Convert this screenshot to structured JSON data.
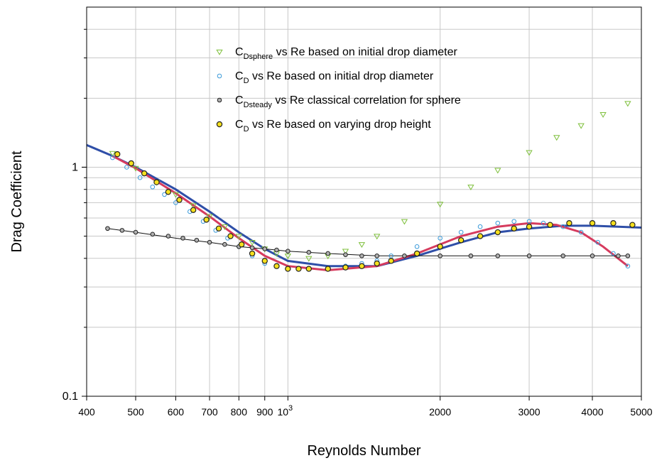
{
  "chart_data": {
    "type": "scatter",
    "title": "",
    "xlabel": "Reynolds Number",
    "ylabel": "Drag Coefficient",
    "xscale": "log",
    "yscale": "log",
    "xlim": [
      400,
      5000
    ],
    "ylim": [
      0.1,
      5
    ],
    "grid": true,
    "legend_position": "top-center",
    "x_ticks": [
      {
        "value": 400,
        "label": "400"
      },
      {
        "value": 500,
        "label": "500"
      },
      {
        "value": 600,
        "label": "600"
      },
      {
        "value": 700,
        "label": "700"
      },
      {
        "value": 800,
        "label": "800"
      },
      {
        "value": 900,
        "label": "900"
      },
      {
        "value": 1000,
        "label": "10",
        "sup": "3"
      },
      {
        "value": 2000,
        "label": "2000"
      },
      {
        "value": 3000,
        "label": "3000"
      },
      {
        "value": 4000,
        "label": "4000"
      },
      {
        "value": 5000,
        "label": "5000"
      }
    ],
    "y_ticks": [
      {
        "value": 0.1,
        "label": "0.1"
      },
      {
        "value": 1,
        "label": "1"
      }
    ],
    "series": [
      {
        "name": "C_Dsphere vs Re based on initial drop diameter",
        "label_main": "C",
        "label_sub": "Dsphere",
        "label_rest": " vs Re based on initial drop diameter",
        "marker": "triangle-down",
        "color": "#7dbf3a",
        "fill": "none",
        "x": [
          450,
          500,
          550,
          600,
          650,
          700,
          750,
          800,
          850,
          900,
          950,
          1000,
          1100,
          1200,
          1300,
          1400,
          1500,
          1700,
          2000,
          2300,
          2600,
          3000,
          3400,
          3800,
          4200,
          4700
        ],
        "y": [
          1.15,
          0.99,
          0.86,
          0.76,
          0.68,
          0.61,
          0.55,
          0.5,
          0.47,
          0.44,
          0.42,
          0.41,
          0.4,
          0.41,
          0.43,
          0.46,
          0.5,
          0.58,
          0.69,
          0.82,
          0.97,
          1.16,
          1.35,
          1.52,
          1.7,
          1.9
        ]
      },
      {
        "name": "C_D vs Re based on initial drop diameter",
        "label_main": "C",
        "label_sub": "D",
        "label_rest": "  vs Re based on initial drop diameter",
        "marker": "circle-open",
        "color": "#3a9ad9",
        "fill": "none",
        "x": [
          450,
          480,
          510,
          540,
          570,
          600,
          640,
          680,
          720,
          760,
          800,
          850,
          900,
          950,
          1000,
          1050,
          1100,
          1200,
          1300,
          1400,
          1500,
          1600,
          1800,
          2000,
          2200,
          2400,
          2600,
          2800,
          3000,
          3200,
          3500,
          3800,
          4100,
          4400,
          4700
        ],
        "y": [
          1.1,
          1.0,
          0.9,
          0.82,
          0.76,
          0.7,
          0.64,
          0.58,
          0.53,
          0.49,
          0.45,
          0.41,
          0.38,
          0.37,
          0.36,
          0.36,
          0.36,
          0.36,
          0.37,
          0.38,
          0.39,
          0.41,
          0.45,
          0.49,
          0.52,
          0.55,
          0.57,
          0.58,
          0.58,
          0.57,
          0.55,
          0.52,
          0.47,
          0.42,
          0.37
        ]
      },
      {
        "name": "C_Dsteady vs Re classical correlation for sphere",
        "label_main": "C",
        "label_sub": "Dsteady",
        "label_rest": " vs Re classical correlation for sphere",
        "marker": "circle-open",
        "color": "#222222",
        "fill": "#b0b0b0",
        "x": [
          440,
          470,
          500,
          540,
          580,
          620,
          660,
          700,
          750,
          800,
          850,
          900,
          950,
          1000,
          1100,
          1200,
          1300,
          1400,
          1500,
          1700,
          2000,
          2300,
          2600,
          3000,
          3500,
          4000,
          4500,
          4700
        ],
        "y": [
          0.54,
          0.53,
          0.52,
          0.51,
          0.5,
          0.49,
          0.48,
          0.47,
          0.46,
          0.45,
          0.445,
          0.44,
          0.435,
          0.43,
          0.425,
          0.42,
          0.415,
          0.41,
          0.41,
          0.41,
          0.41,
          0.41,
          0.41,
          0.41,
          0.41,
          0.41,
          0.41,
          0.41
        ]
      },
      {
        "name": "C_D vs Re based on varying drop height",
        "label_main": "C",
        "label_sub": "D",
        "label_rest": " vs Re based on varying drop height",
        "marker": "circle-filled",
        "color": "#222222",
        "fill": "#f5e01e",
        "x": [
          460,
          490,
          520,
          550,
          580,
          610,
          650,
          690,
          730,
          770,
          810,
          850,
          900,
          950,
          1000,
          1050,
          1100,
          1200,
          1300,
          1400,
          1500,
          1600,
          1800,
          2000,
          2200,
          2400,
          2600,
          2800,
          3000,
          3300,
          3600,
          4000,
          4400,
          4800
        ],
        "y": [
          1.14,
          1.04,
          0.94,
          0.86,
          0.78,
          0.72,
          0.65,
          0.59,
          0.54,
          0.5,
          0.46,
          0.42,
          0.39,
          0.37,
          0.36,
          0.36,
          0.36,
          0.36,
          0.365,
          0.37,
          0.38,
          0.39,
          0.42,
          0.45,
          0.48,
          0.5,
          0.52,
          0.54,
          0.55,
          0.56,
          0.57,
          0.57,
          0.57,
          0.56
        ]
      }
    ],
    "fit_curves": [
      {
        "color": "#2f4fa8",
        "x": [
          400,
          450,
          500,
          600,
          700,
          800,
          900,
          1000,
          1200,
          1500,
          1800,
          2200,
          2600,
          3000,
          3500,
          4000,
          4500,
          5000
        ],
        "y": [
          1.25,
          1.12,
          1.0,
          0.8,
          0.64,
          0.52,
          0.44,
          0.39,
          0.37,
          0.37,
          0.41,
          0.47,
          0.52,
          0.54,
          0.555,
          0.555,
          0.55,
          0.545
        ]
      },
      {
        "color": "#d63b5e",
        "x": [
          450,
          500,
          600,
          700,
          800,
          900,
          1000,
          1200,
          1500,
          1800,
          2200,
          2600,
          3000,
          3400,
          3800,
          4200,
          4700
        ],
        "y": [
          1.12,
          0.99,
          0.77,
          0.61,
          0.49,
          0.41,
          0.37,
          0.355,
          0.37,
          0.42,
          0.5,
          0.55,
          0.57,
          0.56,
          0.52,
          0.45,
          0.37
        ]
      },
      {
        "color": "#111111",
        "x": [
          440,
          500,
          600,
          700,
          800,
          900,
          1000,
          1200,
          1500,
          2000,
          3000,
          4000,
          4700
        ],
        "y": [
          0.54,
          0.52,
          0.49,
          0.47,
          0.45,
          0.44,
          0.43,
          0.42,
          0.41,
          0.41,
          0.41,
          0.41,
          0.41
        ]
      }
    ]
  }
}
